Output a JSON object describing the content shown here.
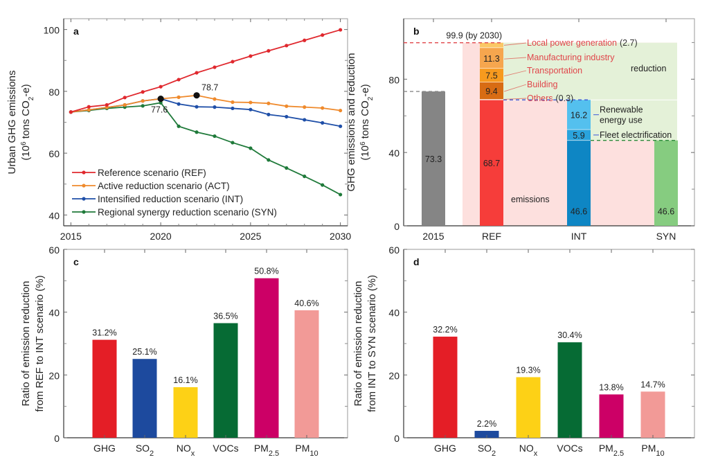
{
  "chart_data": [
    {
      "panel": "a",
      "type": "line",
      "xlabel": "",
      "ylabel": "Urban GHG emissions",
      "ylabel_line2_parts": [
        "(10",
        "6",
        " tons CO",
        "2",
        "-e)"
      ],
      "x": [
        2015,
        2016,
        2017,
        2018,
        2019,
        2020,
        2021,
        2022,
        2023,
        2024,
        2025,
        2026,
        2027,
        2028,
        2029,
        2030
      ],
      "xlim": [
        2014.6,
        2030.4
      ],
      "ylim": [
        36.5,
        103.5
      ],
      "xticks": [
        2015,
        2020,
        2025,
        2030
      ],
      "yticks": [
        40,
        60,
        80,
        100
      ],
      "xticks_minor": [
        2016,
        2017,
        2018,
        2019,
        2021,
        2022,
        2023,
        2024,
        2026,
        2027,
        2028,
        2029
      ],
      "yticks_minor": [
        50,
        70,
        90
      ],
      "grid": false,
      "legend_position": "bottom-left",
      "series": [
        {
          "name": "Reference scenario (REF)",
          "color": "#e0282e",
          "values": [
            73.3,
            75.0,
            75.6,
            78.0,
            79.8,
            81.5,
            83.8,
            86.0,
            87.8,
            89.6,
            91.4,
            93.1,
            94.8,
            96.5,
            98.2,
            99.9
          ]
        },
        {
          "name": "Active reduction scenario (ACT)",
          "color": "#ef8a2c",
          "values": [
            73.3,
            74.0,
            74.8,
            75.6,
            76.9,
            77.6,
            78.1,
            78.7,
            77.5,
            76.5,
            76.4,
            76.1,
            75.2,
            74.9,
            74.6,
            73.8
          ]
        },
        {
          "name": "Intensified reduction scenario (INT)",
          "color": "#1f4fa8",
          "values": [
            73.3,
            74.0,
            74.8,
            75.6,
            76.9,
            77.6,
            75.9,
            75.0,
            74.9,
            74.5,
            74.1,
            72.5,
            71.8,
            70.8,
            69.8,
            68.7
          ]
        },
        {
          "name": "Regional synergy reduction scenario (SYN)",
          "color": "#1f7a3a",
          "values": [
            73.3,
            73.8,
            74.5,
            74.9,
            75.3,
            76.3,
            68.7,
            66.8,
            65.5,
            63.4,
            61.6,
            57.8,
            55.2,
            52.5,
            49.7,
            46.6
          ]
        }
      ],
      "annotations": [
        {
          "x": 2020,
          "y": 77.6,
          "text": "77.6",
          "label_side": "below"
        },
        {
          "x": 2022,
          "y": 78.7,
          "text": "78.7",
          "label_side": "above-right"
        }
      ]
    },
    {
      "panel": "b",
      "type": "bar",
      "subtype": "stacked-waterfall",
      "ylabel": "GHG emissions and reduction",
      "ylabel_line2_parts": [
        "(10",
        "6",
        " tons CO",
        "2",
        "-e)"
      ],
      "ylim": [
        0,
        113
      ],
      "yticks": [
        0,
        40,
        80
      ],
      "yticks_minor": [
        20,
        60,
        100
      ],
      "categories": [
        "2015",
        "REF",
        "INT",
        "SYN"
      ],
      "bars": [
        {
          "category": "2015",
          "segments": [
            {
              "value": 73.3,
              "label": "73.3",
              "color": "#858585"
            }
          ]
        },
        {
          "category": "REF",
          "segments": [
            {
              "value": 68.7,
              "label": "68.7",
              "color": "#f63d3a"
            },
            {
              "value": 0.3,
              "label": "",
              "color": "#f6b07a",
              "sector": "Others"
            },
            {
              "value": 9.4,
              "label": "9.4",
              "color": "#d86c14",
              "sector": "Building"
            },
            {
              "value": 7.5,
              "label": "7.5",
              "color": "#f79a1e",
              "sector": "Transportation"
            },
            {
              "value": 11.3,
              "label": "11.3",
              "color": "#f6a64e",
              "sector": "Manufacturing industry"
            },
            {
              "value": 2.7,
              "label": "",
              "color": "#fbc766",
              "sector": "Local power generation"
            }
          ]
        },
        {
          "category": "INT",
          "segments": [
            {
              "value": 46.6,
              "label": "46.6",
              "color": "#0e86c4"
            },
            {
              "value": 5.9,
              "label": "5.9",
              "color": "#2aa3dc",
              "sector": "Fleet electrification"
            },
            {
              "value": 16.2,
              "label": "16.2",
              "color": "#54c0ee",
              "sector": "Renewable energy use"
            }
          ]
        },
        {
          "category": "SYN",
          "segments": [
            {
              "value": 46.6,
              "label": "46.6",
              "color": "#86cc80"
            }
          ]
        }
      ],
      "reference_lines": [
        {
          "y": 99.9,
          "label": "99.9 (by 2030)",
          "color": "#e0454a"
        },
        {
          "y": 73.3,
          "label": "",
          "color": "#888888"
        },
        {
          "y": 68.7,
          "label": "",
          "color": "#3c56d8"
        },
        {
          "y": 46.6,
          "label": "",
          "color": "#2d8a3c"
        }
      ],
      "sector_labels": [
        {
          "name": "Local power generation",
          "value_text": "(2.7)",
          "color": "#e0454a"
        },
        {
          "name": "Manufacturing industry",
          "value_text": "",
          "color": "#e0454a"
        },
        {
          "name": "Transportation",
          "value_text": "",
          "color": "#e0454a"
        },
        {
          "name": "Building",
          "value_text": "",
          "color": "#e0454a"
        },
        {
          "name": "Others",
          "value_text": "(0.3)",
          "color": "#e0454a"
        }
      ],
      "measure_labels": [
        {
          "lines": [
            "Renewable",
            "energy use"
          ],
          "color": "#3c56d8"
        },
        {
          "lines": [
            "Fleet electrification"
          ],
          "color": "#3c56d8"
        }
      ],
      "region_labels": {
        "reduction": "reduction",
        "emissions": "emissions"
      },
      "region_colors": {
        "reduction": "#e4f1d8",
        "emissions": "#fde0de"
      }
    },
    {
      "panel": "c",
      "type": "bar",
      "ylabel": "Ratio of emission reduction",
      "ylabel_line2": "from REF to INT scenario (%)",
      "ylim": [
        0,
        60
      ],
      "yticks": [
        0,
        20,
        40,
        60
      ],
      "yticks_minor": [
        10,
        30,
        50
      ],
      "categories": [
        {
          "base": "GHG",
          "sub": ""
        },
        {
          "base": "SO",
          "sub": "2"
        },
        {
          "base": "NO",
          "sub": "x"
        },
        {
          "base": "VOCs",
          "sub": ""
        },
        {
          "base": "PM",
          "sub": "2.5"
        },
        {
          "base": "PM",
          "sub": "10"
        }
      ],
      "values": [
        31.2,
        25.1,
        16.1,
        36.5,
        50.8,
        40.6
      ],
      "labels": [
        "31.2%",
        "25.1%",
        "16.1%",
        "36.5%",
        "50.8%",
        "40.6%"
      ],
      "colors": [
        "#e41e26",
        "#1d4a9e",
        "#fdd116",
        "#066b34",
        "#cc0066",
        "#f29a97"
      ]
    },
    {
      "panel": "d",
      "type": "bar",
      "ylabel": "Ratio of emission reduction",
      "ylabel_line2": "from INT to SYN scenario (%)",
      "ylim": [
        0,
        60
      ],
      "yticks": [
        0,
        20,
        40,
        60
      ],
      "yticks_minor": [
        10,
        30,
        50
      ],
      "categories": [
        {
          "base": "GHG",
          "sub": ""
        },
        {
          "base": "SO",
          "sub": "2"
        },
        {
          "base": "NO",
          "sub": "x"
        },
        {
          "base": "VOCs",
          "sub": ""
        },
        {
          "base": "PM",
          "sub": "2.5"
        },
        {
          "base": "PM",
          "sub": "10"
        }
      ],
      "values": [
        32.2,
        2.2,
        19.3,
        30.4,
        13.8,
        14.7
      ],
      "labels": [
        "32.2%",
        "2.2%",
        "19.3%",
        "30.4%",
        "13.8%",
        "14.7%"
      ],
      "colors": [
        "#e41e26",
        "#1d4a9e",
        "#fdd116",
        "#066b34",
        "#cc0066",
        "#f29a97"
      ]
    }
  ]
}
